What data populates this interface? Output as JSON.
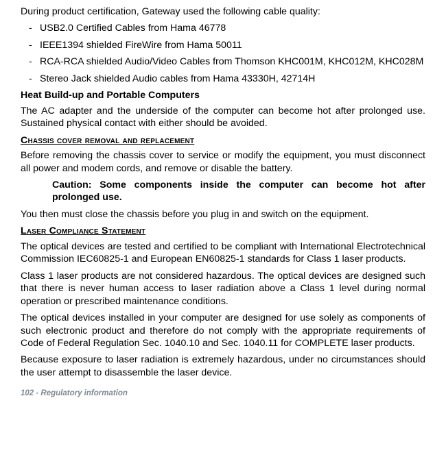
{
  "intro": "During product certification, Gateway used the following cable quality:",
  "cableList": [
    "USB2.0 Certified Cables from Hama 46778",
    "IEEE1394 shielded FireWire from Hama 50011",
    "RCA-RCA shielded Audio/Video Cables from Thomson KHC001M, KHC012M, KHC028M",
    "Stereo Jack shielded Audio cables from Hama 43330H, 42714H"
  ],
  "headings": {
    "heat": "Heat Build-up and Portable Computers",
    "chassis": "Chassis cover removal and replacement",
    "laser": "Laser Compliance Statement"
  },
  "paragraphs": {
    "heat1": "The AC adapter and the underside of the computer can become hot after prolonged use. Sustained physical contact with either should be avoided.",
    "chassis1": "Before removing the chassis cover to service or modify the equipment, you must disconnect all power and modem cords, and remove or disable the battery.",
    "caution": "Caution: Some components inside the computer can become hot after prolonged use.",
    "chassis2": "You then must close the chassis before you plug in and switch on the equipment.",
    "laser1": "The optical devices are tested and certified to be compliant with International Electrotechnical Commission IEC60825-1 and European EN60825-1 standards for Class 1 laser products.",
    "laser2": "Class 1 laser products are not considered hazardous. The optical devices are designed such that there is never human access to laser radiation above a Class 1 level during normal operation or prescribed maintenance conditions.",
    "laser3": "The optical devices installed in your computer are designed for use solely as components of such electronic product and therefore do not comply with the appropriate requirements of Code of Federal Regulation Sec. 1040.10 and Sec. 1040.11 for COMPLETE laser products.",
    "laser4": "Because exposure to laser radiation is extremely hazardous, under no circumstances should the user attempt to disassemble the laser device."
  },
  "footer": {
    "pageNumber": "102",
    "sep": " - ",
    "section": "Regulatory information"
  }
}
